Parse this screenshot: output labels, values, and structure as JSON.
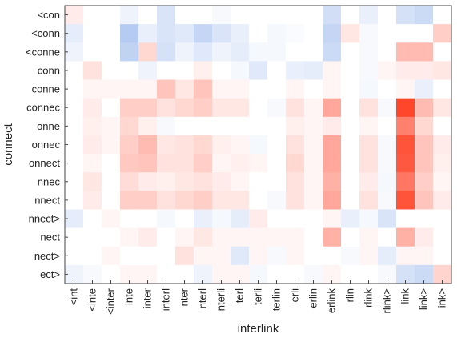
{
  "chart_data": {
    "type": "heatmap",
    "xlabel": "interlink",
    "ylabel": "connect",
    "x_categories": [
      "<int",
      "<inte",
      "<inter",
      "inte",
      "inter",
      "interl",
      "nter",
      "nterl",
      "nterli",
      "terl",
      "terli",
      "terlin",
      "erli",
      "erlin",
      "erlink",
      "rlin",
      "rlink",
      "rlink>",
      "link",
      "link>",
      "ink>"
    ],
    "y_categories": [
      "<con",
      "<conn",
      "<conne",
      "conn",
      "conne",
      "connec",
      "onne",
      "onnec",
      "onnect",
      "nnec",
      "nnect",
      "nnect>",
      "nect",
      "nect>",
      "ect>"
    ],
    "color_scale": {
      "min": -1,
      "max": 1,
      "negative": "#2e6bd6",
      "zero": "#ffffff",
      "positive": "#ff3b1f"
    },
    "values": [
      [
        0.1,
        0.0,
        0.0,
        -0.08,
        0.0,
        -0.18,
        0.0,
        0.0,
        -0.04,
        0.0,
        0.0,
        0.0,
        0.0,
        0.0,
        -0.22,
        0.0,
        -0.1,
        0.0,
        -0.2,
        -0.25,
        0.0
      ],
      [
        -0.12,
        0.0,
        0.0,
        -0.35,
        -0.1,
        -0.18,
        -0.15,
        -0.28,
        -0.18,
        -0.1,
        0.0,
        -0.05,
        -0.03,
        0.0,
        -0.28,
        0.12,
        -0.04,
        0.0,
        0.0,
        0.0,
        0.25
      ],
      [
        -0.08,
        0.0,
        0.0,
        -0.3,
        0.2,
        -0.2,
        -0.08,
        -0.15,
        -0.08,
        -0.12,
        -0.05,
        -0.05,
        0.0,
        0.0,
        -0.25,
        0.0,
        -0.04,
        0.0,
        0.35,
        0.35,
        0.0
      ],
      [
        0.0,
        0.15,
        0.0,
        0.0,
        -0.08,
        0.0,
        0.0,
        0.08,
        0.0,
        -0.05,
        -0.15,
        0.0,
        -0.1,
        -0.12,
        0.05,
        0.0,
        -0.04,
        0.05,
        0.1,
        0.1,
        0.12
      ],
      [
        0.0,
        0.05,
        0.05,
        0.05,
        0.05,
        0.3,
        0.12,
        0.3,
        0.05,
        0.05,
        0.0,
        0.0,
        0.05,
        0.0,
        0.05,
        0.0,
        -0.05,
        0.0,
        0.05,
        -0.1,
        0.0
      ],
      [
        0.0,
        0.1,
        0.0,
        0.25,
        0.25,
        0.15,
        0.2,
        0.25,
        0.12,
        0.12,
        0.0,
        -0.04,
        0.15,
        0.05,
        0.45,
        0.0,
        0.15,
        -0.04,
        0.95,
        0.35,
        0.12
      ],
      [
        0.0,
        0.08,
        0.05,
        0.2,
        0.08,
        -0.04,
        0.0,
        0.0,
        0.0,
        0.0,
        0.0,
        0.0,
        0.08,
        0.05,
        0.1,
        0.0,
        0.05,
        0.0,
        0.65,
        0.2,
        0.0
      ],
      [
        0.0,
        0.1,
        0.05,
        0.25,
        0.35,
        0.12,
        0.15,
        0.2,
        0.08,
        0.05,
        -0.05,
        0.0,
        0.15,
        0.05,
        0.45,
        0.0,
        0.15,
        -0.04,
        0.88,
        0.3,
        0.1
      ],
      [
        0.0,
        0.05,
        0.0,
        0.28,
        0.3,
        0.15,
        0.15,
        0.25,
        0.05,
        0.08,
        0.05,
        0.0,
        0.2,
        0.05,
        0.45,
        0.0,
        0.15,
        -0.04,
        0.85,
        0.3,
        0.08
      ],
      [
        0.0,
        0.12,
        0.0,
        0.18,
        0.1,
        0.08,
        0.12,
        0.15,
        0.1,
        0.05,
        0.0,
        0.0,
        0.15,
        0.05,
        0.4,
        0.0,
        0.1,
        -0.05,
        0.7,
        0.25,
        0.05
      ],
      [
        0.0,
        0.1,
        0.0,
        0.25,
        0.25,
        0.15,
        0.2,
        0.25,
        0.12,
        0.12,
        0.0,
        -0.04,
        0.15,
        0.05,
        0.45,
        0.0,
        0.15,
        -0.04,
        0.88,
        0.3,
        0.1
      ],
      [
        -0.12,
        0.0,
        0.05,
        0.0,
        0.0,
        -0.05,
        0.0,
        -0.1,
        -0.05,
        -0.12,
        0.1,
        0.0,
        0.0,
        0.0,
        0.05,
        -0.1,
        -0.05,
        -0.18,
        0.0,
        0.0,
        0.0
      ],
      [
        0.0,
        0.0,
        0.0,
        0.05,
        0.1,
        0.0,
        0.05,
        0.12,
        0.05,
        0.05,
        0.05,
        0.05,
        0.05,
        0.0,
        0.4,
        0.0,
        0.05,
        0.0,
        0.4,
        0.1,
        0.0
      ],
      [
        0.0,
        0.0,
        0.05,
        0.0,
        0.0,
        0.0,
        0.15,
        0.05,
        0.05,
        -0.15,
        0.05,
        -0.04,
        0.05,
        0.0,
        0.0,
        -0.04,
        0.05,
        -0.12,
        0.05,
        0.05,
        0.0
      ],
      [
        -0.08,
        -0.04,
        0.0,
        0.05,
        0.05,
        0.0,
        0.0,
        -0.08,
        0.05,
        0.05,
        -0.05,
        0.0,
        0.0,
        -0.04,
        0.05,
        0.0,
        0.0,
        -0.04,
        -0.2,
        -0.25,
        0.22
      ]
    ]
  }
}
